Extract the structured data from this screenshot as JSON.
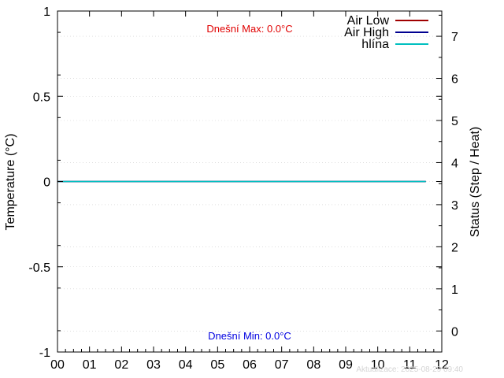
{
  "chart_data": {
    "type": "line",
    "x_ticks": [
      "00",
      "01",
      "02",
      "03",
      "04",
      "05",
      "06",
      "07",
      "08",
      "09",
      "10",
      "11",
      "12"
    ],
    "xlim": [
      0,
      12
    ],
    "ylabel": "Temperature (°C)",
    "ylim": [
      -1,
      1
    ],
    "y_ticks": [
      "-1",
      "-0.5",
      "0",
      "0.5",
      "1"
    ],
    "y_tick_values": [
      -1,
      -0.5,
      0,
      0.5,
      1
    ],
    "y2label": "Status (Step / Heat)",
    "y2lim": [
      -0.5,
      7.6
    ],
    "y2_ticks": [
      "0",
      "1",
      "2",
      "3",
      "4",
      "5",
      "6",
      "7"
    ],
    "y2_tick_values": [
      0,
      1,
      2,
      3,
      4,
      5,
      6,
      7
    ],
    "grid": true,
    "legend_position": "top-right",
    "series": [
      {
        "name": "Air Low",
        "color": "#a00000",
        "axis": "left",
        "x": [
          0,
          11.5
        ],
        "y": [
          0,
          0
        ]
      },
      {
        "name": "Air High",
        "color": "#000090",
        "axis": "left",
        "x": [
          0,
          11.5
        ],
        "y": [
          0,
          0
        ]
      },
      {
        "name": "hlína",
        "color": "#00c0c0",
        "axis": "left",
        "x": [
          0,
          11.5
        ],
        "y": [
          0,
          0
        ]
      }
    ],
    "annotations": {
      "max_text": "Dnešní Max: 0.0°C",
      "max_color": "#e00000",
      "min_text": "Dnešní Min: 0.0°C",
      "min_color": "#0000e0"
    },
    "footer": "Aktualizace: 2025-08-29 09:40"
  }
}
